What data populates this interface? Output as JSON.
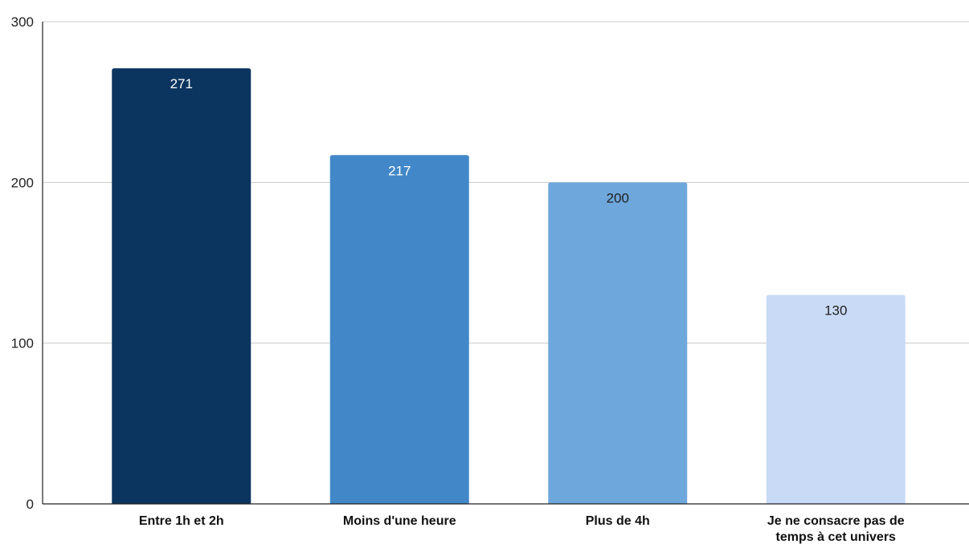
{
  "chart_data": {
    "type": "bar",
    "title": "",
    "xlabel": "",
    "ylabel": "",
    "categories": [
      [
        "Entre 1h et 2h"
      ],
      [
        "Moins d'une heure"
      ],
      [
        "Plus de 4h"
      ],
      [
        "Je ne consacre pas de",
        "temps à cet univers"
      ]
    ],
    "values": [
      271,
      217,
      200,
      130
    ],
    "bar_colors": [
      "#0b355f",
      "#4288c8",
      "#6ea7db",
      "#c9daf6"
    ],
    "label_colors": [
      "#ffffff",
      "#ffffff",
      "#1f1f1f",
      "#1f1f1f"
    ],
    "ylim": [
      0,
      300
    ],
    "yticks": [
      0,
      100,
      200,
      300
    ],
    "grid": true,
    "legend": "none",
    "data_labels": true
  }
}
